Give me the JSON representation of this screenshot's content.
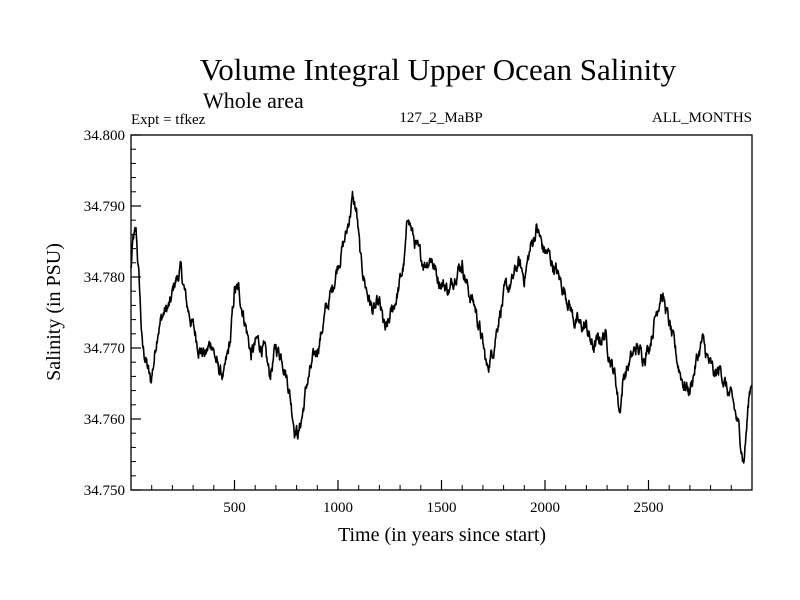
{
  "chart_data": {
    "type": "line",
    "title": "Volume Integral Upper Ocean Salinity",
    "subtitle": "Whole area",
    "left_label": "Expt = tfkez",
    "center_label": "127_2_MaBP",
    "right_label": "ALL_MONTHS",
    "xlabel": "Time (in years since start)",
    "ylabel": "Salinity (in PSU)",
    "xlim": [
      0,
      3000
    ],
    "ylim": [
      34.75,
      34.8
    ],
    "xticks": [
      500,
      1000,
      1500,
      2000,
      2500
    ],
    "yticks": [
      "34.750",
      "34.760",
      "34.770",
      "34.780",
      "34.790",
      "34.800"
    ],
    "grid": false,
    "series": [
      {
        "color": "#000000",
        "anchors": [
          [
            0,
            34.781
          ],
          [
            10,
            34.785
          ],
          [
            25,
            34.786
          ],
          [
            40,
            34.779
          ],
          [
            55,
            34.77
          ],
          [
            75,
            34.768
          ],
          [
            95,
            34.765
          ],
          [
            110,
            34.768
          ],
          [
            130,
            34.773
          ],
          [
            160,
            34.775
          ],
          [
            190,
            34.776
          ],
          [
            210,
            34.779
          ],
          [
            240,
            34.781
          ],
          [
            270,
            34.776
          ],
          [
            300,
            34.773
          ],
          [
            330,
            34.77
          ],
          [
            360,
            34.769
          ],
          [
            390,
            34.771
          ],
          [
            420,
            34.767
          ],
          [
            450,
            34.766
          ],
          [
            480,
            34.771
          ],
          [
            500,
            34.778
          ],
          [
            520,
            34.778
          ],
          [
            550,
            34.774
          ],
          [
            580,
            34.769
          ],
          [
            610,
            34.771
          ],
          [
            640,
            34.77
          ],
          [
            670,
            34.766
          ],
          [
            700,
            34.77
          ],
          [
            730,
            34.769
          ],
          [
            760,
            34.765
          ],
          [
            790,
            34.759
          ],
          [
            810,
            34.758
          ],
          [
            830,
            34.761
          ],
          [
            850,
            34.765
          ],
          [
            880,
            34.768
          ],
          [
            910,
            34.771
          ],
          [
            940,
            34.775
          ],
          [
            970,
            34.778
          ],
          [
            1000,
            34.782
          ],
          [
            1040,
            34.786
          ],
          [
            1070,
            34.791
          ],
          [
            1090,
            34.789
          ],
          [
            1110,
            34.782
          ],
          [
            1140,
            34.778
          ],
          [
            1170,
            34.775
          ],
          [
            1200,
            34.776
          ],
          [
            1230,
            34.772
          ],
          [
            1260,
            34.775
          ],
          [
            1290,
            34.778
          ],
          [
            1320,
            34.782
          ],
          [
            1340,
            34.789
          ],
          [
            1360,
            34.786
          ],
          [
            1390,
            34.783
          ],
          [
            1420,
            34.782
          ],
          [
            1450,
            34.783
          ],
          [
            1480,
            34.78
          ],
          [
            1510,
            34.779
          ],
          [
            1540,
            34.778
          ],
          [
            1570,
            34.781
          ],
          [
            1600,
            34.782
          ],
          [
            1630,
            34.778
          ],
          [
            1660,
            34.776
          ],
          [
            1690,
            34.772
          ],
          [
            1720,
            34.767
          ],
          [
            1750,
            34.77
          ],
          [
            1780,
            34.775
          ],
          [
            1810,
            34.778
          ],
          [
            1840,
            34.779
          ],
          [
            1870,
            34.782
          ],
          [
            1900,
            34.78
          ],
          [
            1930,
            34.784
          ],
          [
            1960,
            34.787
          ],
          [
            1990,
            34.784
          ],
          [
            2020,
            34.783
          ],
          [
            2050,
            34.781
          ],
          [
            2080,
            34.779
          ],
          [
            2110,
            34.777
          ],
          [
            2140,
            34.774
          ],
          [
            2170,
            34.773
          ],
          [
            2200,
            34.773
          ],
          [
            2230,
            34.77
          ],
          [
            2260,
            34.771
          ],
          [
            2290,
            34.772
          ],
          [
            2320,
            34.768
          ],
          [
            2340,
            34.766
          ],
          [
            2360,
            34.761
          ],
          [
            2380,
            34.766
          ],
          [
            2410,
            34.768
          ],
          [
            2440,
            34.77
          ],
          [
            2470,
            34.769
          ],
          [
            2500,
            34.77
          ],
          [
            2530,
            34.774
          ],
          [
            2560,
            34.778
          ],
          [
            2580,
            34.776
          ],
          [
            2610,
            34.772
          ],
          [
            2640,
            34.768
          ],
          [
            2670,
            34.765
          ],
          [
            2700,
            34.764
          ],
          [
            2730,
            34.768
          ],
          [
            2760,
            34.771
          ],
          [
            2790,
            34.768
          ],
          [
            2820,
            34.766
          ],
          [
            2850,
            34.767
          ],
          [
            2880,
            34.764
          ],
          [
            2910,
            34.762
          ],
          [
            2940,
            34.758
          ],
          [
            2960,
            34.754
          ],
          [
            2975,
            34.759
          ],
          [
            2985,
            34.763
          ],
          [
            3000,
            34.766
          ]
        ]
      }
    ]
  }
}
